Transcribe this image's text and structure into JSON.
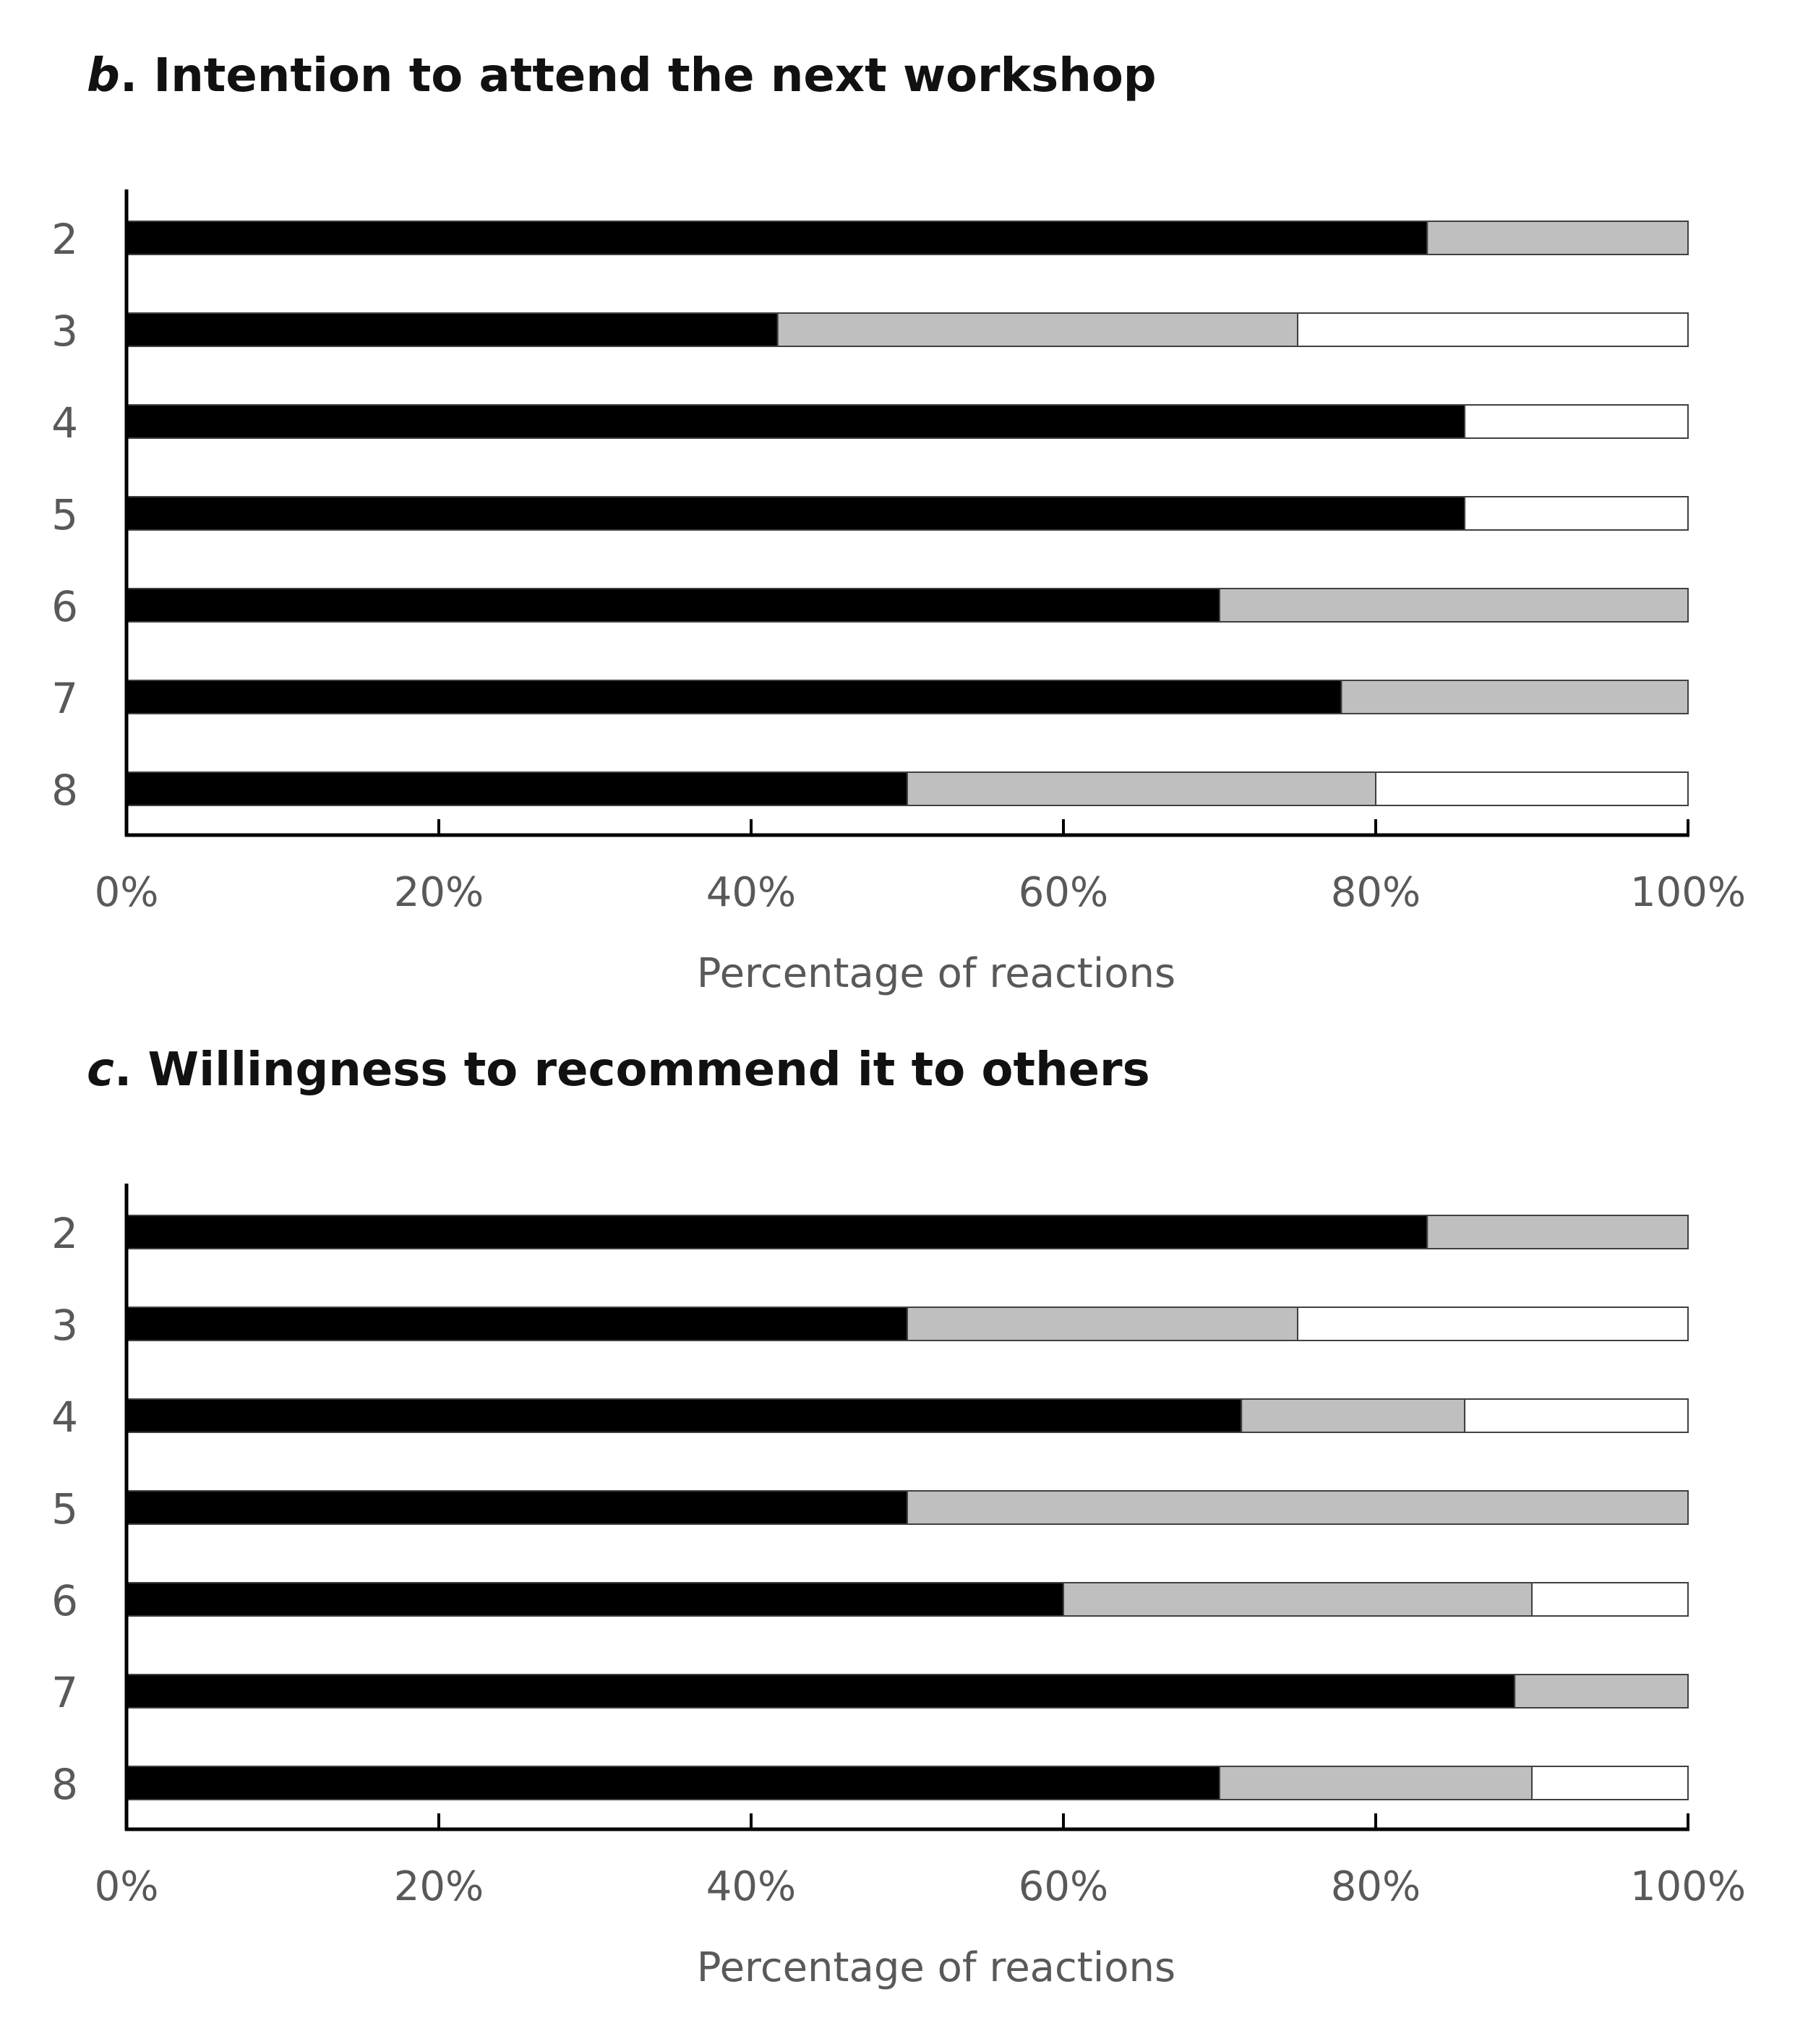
{
  "chart_data": [
    {
      "type": "bar",
      "orientation": "horizontal",
      "stacked": true,
      "panel_letter": "b",
      "title": "Intention to attend the next workshop",
      "xlabel": "Percentage of reactions",
      "ylabel": "",
      "xlim": [
        0,
        100
      ],
      "x_ticks": [
        "0%",
        "20%",
        "40%",
        "60%",
        "80%",
        "100%"
      ],
      "categories": [
        "2",
        "3",
        "4",
        "5",
        "6",
        "7",
        "8"
      ],
      "series": [
        {
          "color": "#000000",
          "values": [
            83.3,
            41.7,
            85.7,
            85.7,
            70.0,
            77.8,
            50.0
          ]
        },
        {
          "color": "#bfbfbf",
          "values": [
            16.7,
            33.3,
            0,
            0,
            30.0,
            22.2,
            30.0
          ]
        },
        {
          "color": "#ffffff",
          "values": [
            0,
            25.0,
            14.3,
            14.3,
            0,
            0,
            20.0
          ]
        }
      ],
      "grid": false,
      "legend": "none"
    },
    {
      "type": "bar",
      "orientation": "horizontal",
      "stacked": true,
      "panel_letter": "c",
      "title": "Willingness to recommend it to others",
      "xlabel": "Percentage of reactions",
      "ylabel": "",
      "xlim": [
        0,
        100
      ],
      "x_ticks": [
        "0%",
        "20%",
        "40%",
        "60%",
        "80%",
        "100%"
      ],
      "categories": [
        "2",
        "3",
        "4",
        "5",
        "6",
        "7",
        "8"
      ],
      "series": [
        {
          "color": "#000000",
          "values": [
            83.3,
            50.0,
            71.4,
            50.0,
            60.0,
            88.9,
            70.0
          ]
        },
        {
          "color": "#bfbfbf",
          "values": [
            16.7,
            25.0,
            14.3,
            50.0,
            30.0,
            11.1,
            20.0
          ]
        },
        {
          "color": "#ffffff",
          "values": [
            0,
            25.0,
            14.3,
            0,
            10.0,
            0,
            10.0
          ]
        }
      ],
      "grid": false,
      "legend": "none"
    }
  ]
}
